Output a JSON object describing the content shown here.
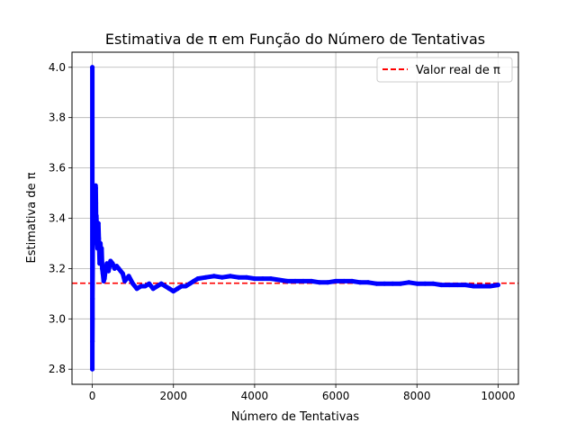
{
  "chart_data": {
    "type": "scatter",
    "title": "Estimativa de π em Função do Número de Tentativas",
    "xlabel": "Número de Tentativas",
    "ylabel": "Estimativa de π",
    "xlim": [
      -500,
      10500
    ],
    "ylim": [
      2.74,
      4.06
    ],
    "xticks": [
      0,
      2000,
      4000,
      6000,
      8000,
      10000
    ],
    "yticks": [
      2.8,
      3.0,
      3.2,
      3.4,
      3.6,
      3.8,
      4.0
    ],
    "ytick_labels": [
      "2.8",
      "3.0",
      "3.2",
      "3.4",
      "3.6",
      "3.8",
      "4.0"
    ],
    "grid": true,
    "legend_position": "top-right",
    "reference_line": {
      "name": "Valor real de π",
      "y": 3.14159,
      "color": "#ff0000",
      "style": "dashed"
    },
    "series": [
      {
        "color": "#0000ff",
        "x": [
          1,
          2,
          3,
          4,
          5,
          6,
          8,
          10,
          12,
          15,
          20,
          25,
          30,
          35,
          40,
          45,
          50,
          55,
          60,
          65,
          70,
          75,
          80,
          85,
          90,
          95,
          100,
          110,
          120,
          130,
          140,
          150,
          160,
          170,
          180,
          190,
          200,
          215,
          230,
          245,
          260,
          280,
          300,
          330,
          360,
          400,
          450,
          500,
          550,
          600,
          650,
          700,
          750,
          800,
          850,
          900,
          1000,
          1100,
          1200,
          1300,
          1400,
          1500,
          1600,
          1700,
          1800,
          1900,
          2000,
          2100,
          2200,
          2300,
          2400,
          2500,
          2600,
          2800,
          3000,
          3200,
          3400,
          3600,
          3800,
          4000,
          4200,
          4400,
          4600,
          4800,
          5000,
          5200,
          5400,
          5600,
          5800,
          6000,
          6200,
          6400,
          6600,
          6800,
          7000,
          7200,
          7400,
          7600,
          7800,
          8000,
          8200,
          8400,
          8600,
          8800,
          9000,
          9200,
          9400,
          9600,
          9800,
          10000
        ],
        "y": [
          4.0,
          2.8,
          3.2,
          2.91,
          3.0,
          3.08,
          3.14,
          3.2,
          3.33,
          3.42,
          3.35,
          3.38,
          3.4,
          3.41,
          3.37,
          3.43,
          3.44,
          3.46,
          3.5,
          3.42,
          3.45,
          3.5,
          3.53,
          3.52,
          3.46,
          3.38,
          3.41,
          3.36,
          3.3,
          3.28,
          3.33,
          3.38,
          3.32,
          3.28,
          3.22,
          3.25,
          3.3,
          3.26,
          3.28,
          3.2,
          3.18,
          3.15,
          3.16,
          3.2,
          3.22,
          3.19,
          3.23,
          3.22,
          3.2,
          3.21,
          3.2,
          3.19,
          3.18,
          3.15,
          3.16,
          3.17,
          3.14,
          3.12,
          3.13,
          3.13,
          3.14,
          3.12,
          3.13,
          3.14,
          3.13,
          3.12,
          3.11,
          3.12,
          3.13,
          3.13,
          3.14,
          3.15,
          3.16,
          3.165,
          3.17,
          3.165,
          3.17,
          3.165,
          3.165,
          3.16,
          3.16,
          3.16,
          3.155,
          3.15,
          3.15,
          3.15,
          3.15,
          3.145,
          3.145,
          3.15,
          3.15,
          3.15,
          3.145,
          3.145,
          3.14,
          3.14,
          3.14,
          3.14,
          3.145,
          3.14,
          3.14,
          3.14,
          3.135,
          3.135,
          3.135,
          3.135,
          3.13,
          3.13,
          3.13,
          3.135
        ]
      }
    ]
  }
}
